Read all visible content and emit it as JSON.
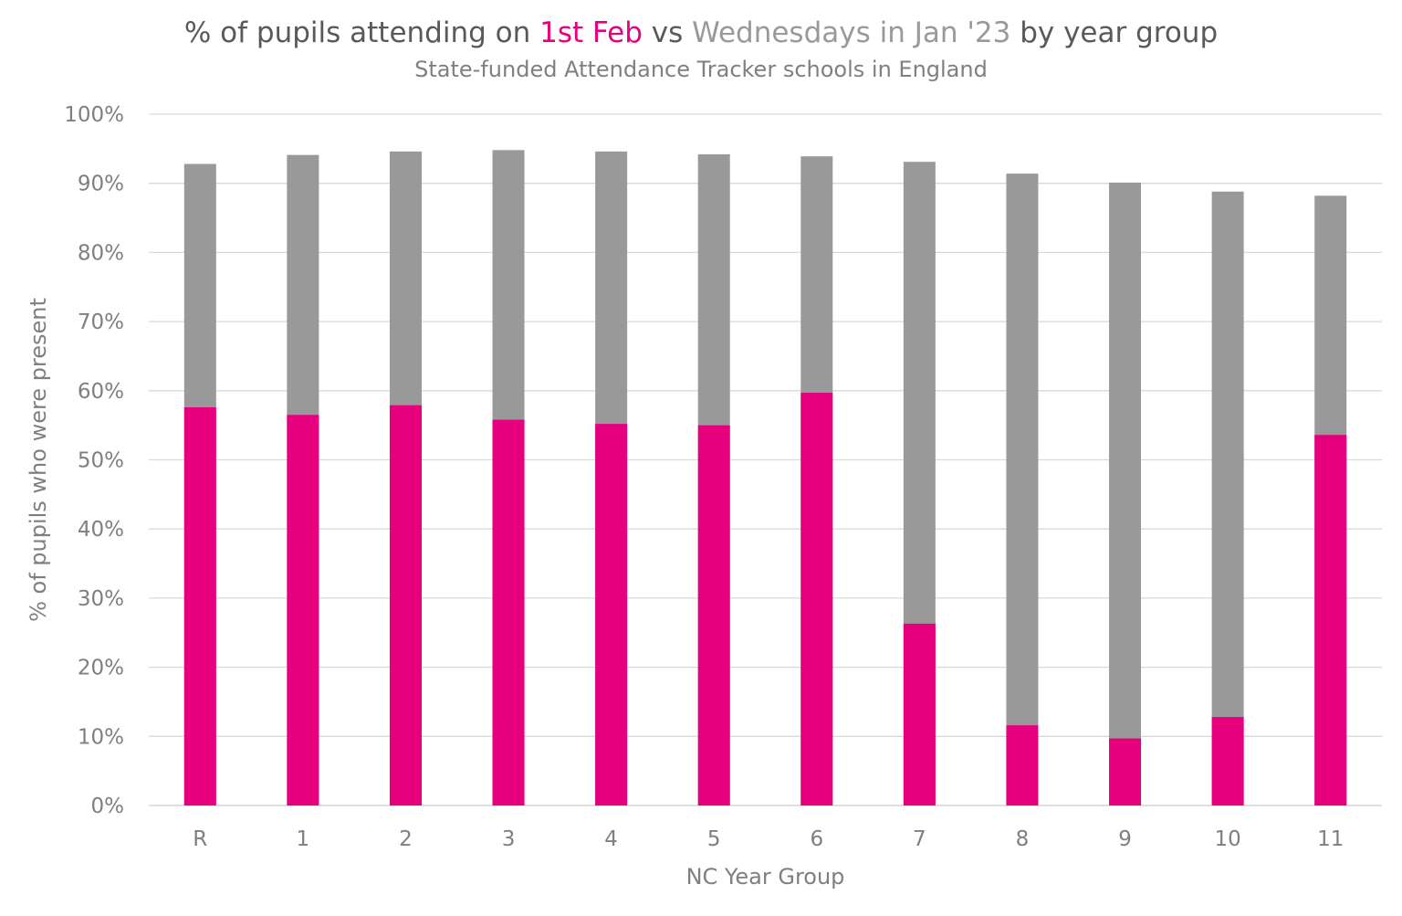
{
  "title": {
    "prefix": "% of pupils attending on ",
    "highlight": "1st Feb",
    "middle": " vs ",
    "secondary": "Wednesdays in Jan '23",
    "suffix": " by year group"
  },
  "subtitle": "State-funded Attendance Tracker schools in England",
  "colors": {
    "highlight": "#e6007e",
    "secondary": "#999999",
    "bar_feb": "#e6007e",
    "bar_jan": "#999999",
    "text": "#595959",
    "axis_text": "#7f7f7f",
    "gridline": "#d9d9d9"
  },
  "chart_data": {
    "type": "bar",
    "stacked_overlap": true,
    "title": "% of pupils attending on 1st Feb vs Wednesdays in Jan '23 by year group",
    "subtitle": "State-funded Attendance Tracker schools in England",
    "xlabel": "NC Year Group",
    "ylabel": "% of pupils who were present",
    "categories": [
      "R",
      "1",
      "2",
      "3",
      "4",
      "5",
      "6",
      "7",
      "8",
      "9",
      "10",
      "11"
    ],
    "series": [
      {
        "name": "Wednesdays in Jan '23",
        "color": "#999999",
        "values": [
          92.8,
          94.1,
          94.6,
          94.8,
          94.6,
          94.2,
          93.9,
          93.1,
          91.4,
          90.1,
          88.8,
          88.2
        ]
      },
      {
        "name": "1st Feb",
        "color": "#e6007e",
        "values": [
          57.6,
          56.5,
          57.9,
          55.8,
          55.2,
          55.0,
          59.7,
          26.3,
          11.6,
          9.7,
          12.8,
          53.6
        ]
      }
    ],
    "yticks": [
      "0%",
      "10%",
      "20%",
      "30%",
      "40%",
      "50%",
      "60%",
      "70%",
      "80%",
      "90%",
      "100%"
    ],
    "ylim": [
      0,
      100
    ],
    "grid": true,
    "legend": "none"
  }
}
